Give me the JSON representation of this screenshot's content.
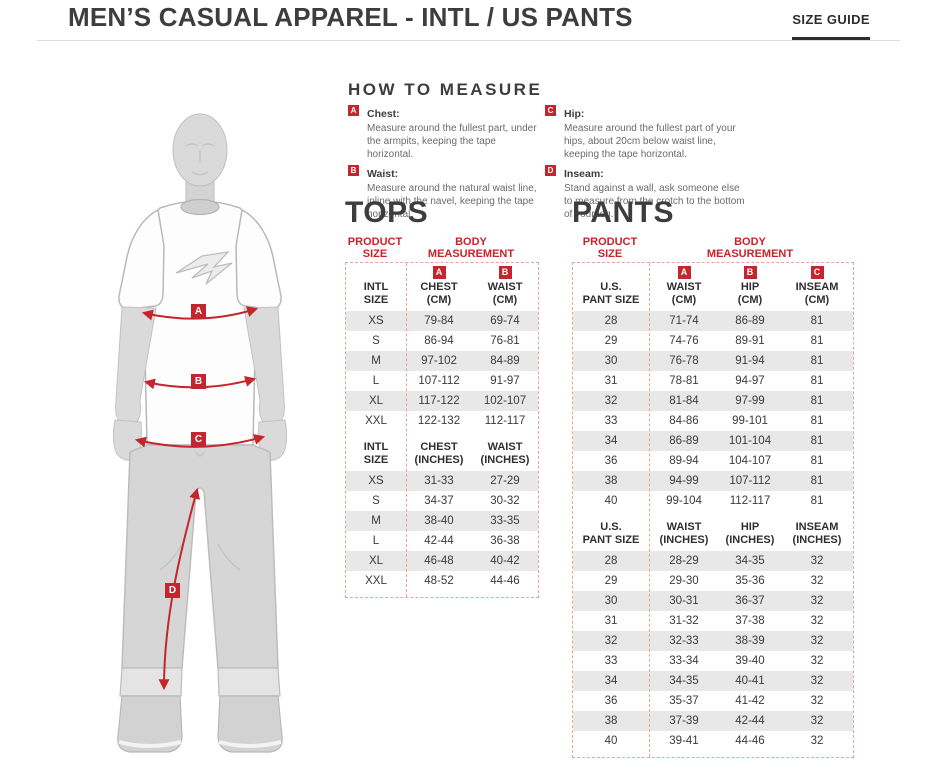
{
  "page": {
    "title": "MEN’S CASUAL APPAREL - INTL / US PANTS",
    "size_guide_label": "SIZE GUIDE"
  },
  "colors": {
    "accent_red": "#c4262e",
    "heading_dark": "#3d3d3d",
    "row_shade": "#e8e8e8",
    "dashed_border": "#e2a59f"
  },
  "figure": {
    "labels": [
      "A",
      "B",
      "C",
      "D"
    ]
  },
  "how_to_measure": {
    "title": "HOW TO MEASURE",
    "items": [
      {
        "letter": "A",
        "name": "Chest:",
        "text": "Measure around the fullest part, under the armpits, keeping the tape horizontal."
      },
      {
        "letter": "B",
        "name": "Waist:",
        "text": "Measure around the natural waist line, inline with the navel, keeping the tape horizontal."
      },
      {
        "letter": "C",
        "name": "Hip:",
        "text": "Measure around the fullest part of your hips, about 20cm below waist line, keeping the tape horizontal."
      },
      {
        "letter": "D",
        "name": "Inseam:",
        "text": "Stand against a wall, ask someone else to measure from the crotch to the bottom of your leg."
      }
    ]
  },
  "tops": {
    "title": "TOPS",
    "product_size_label": "PRODUCT\nSIZE",
    "body_measurement_label": "BODY\nMEASUREMENT",
    "cm": {
      "badges": [
        "A",
        "B"
      ],
      "columns": [
        "INTL\nSIZE",
        "CHEST\n(CM)",
        "WAIST\n(CM)"
      ],
      "rows": [
        [
          "XS",
          "79-84",
          "69-74"
        ],
        [
          "S",
          "86-94",
          "76-81"
        ],
        [
          "M",
          "97-102",
          "84-89"
        ],
        [
          "L",
          "107-112",
          "91-97"
        ],
        [
          "XL",
          "117-122",
          "102-107"
        ],
        [
          "XXL",
          "122-132",
          "112-117"
        ]
      ]
    },
    "inches": {
      "columns": [
        "INTL\nSIZE",
        "CHEST\n(INCHES)",
        "WAIST\n(INCHES)"
      ],
      "rows": [
        [
          "XS",
          "31-33",
          "27-29"
        ],
        [
          "S",
          "34-37",
          "30-32"
        ],
        [
          "M",
          "38-40",
          "33-35"
        ],
        [
          "L",
          "42-44",
          "36-38"
        ],
        [
          "XL",
          "46-48",
          "40-42"
        ],
        [
          "XXL",
          "48-52",
          "44-46"
        ]
      ]
    }
  },
  "pants": {
    "title": "PANTS",
    "product_size_label": "PRODUCT\nSIZE",
    "body_measurement_label": "BODY\nMEASUREMENT",
    "cm": {
      "badges": [
        "A",
        "B",
        "C"
      ],
      "columns": [
        "U.S.\nPANT SIZE",
        "WAIST\n(CM)",
        "HIP\n(CM)",
        "INSEAM\n(CM)"
      ],
      "rows": [
        [
          "28",
          "71-74",
          "86-89",
          "81"
        ],
        [
          "29",
          "74-76",
          "89-91",
          "81"
        ],
        [
          "30",
          "76-78",
          "91-94",
          "81"
        ],
        [
          "31",
          "78-81",
          "94-97",
          "81"
        ],
        [
          "32",
          "81-84",
          "97-99",
          "81"
        ],
        [
          "33",
          "84-86",
          "99-101",
          "81"
        ],
        [
          "34",
          "86-89",
          "101-104",
          "81"
        ],
        [
          "36",
          "89-94",
          "104-107",
          "81"
        ],
        [
          "38",
          "94-99",
          "107-112",
          "81"
        ],
        [
          "40",
          "99-104",
          "112-117",
          "81"
        ]
      ]
    },
    "inches": {
      "columns": [
        "U.S.\nPANT SIZE",
        "WAIST\n(INCHES)",
        "HIP\n(INCHES)",
        "INSEAM\n(INCHES)"
      ],
      "rows": [
        [
          "28",
          "28-29",
          "34-35",
          "32"
        ],
        [
          "29",
          "29-30",
          "35-36",
          "32"
        ],
        [
          "30",
          "30-31",
          "36-37",
          "32"
        ],
        [
          "31",
          "31-32",
          "37-38",
          "32"
        ],
        [
          "32",
          "32-33",
          "38-39",
          "32"
        ],
        [
          "33",
          "33-34",
          "39-40",
          "32"
        ],
        [
          "34",
          "34-35",
          "40-41",
          "32"
        ],
        [
          "36",
          "35-37",
          "41-42",
          "32"
        ],
        [
          "38",
          "37-39",
          "42-44",
          "32"
        ],
        [
          "40",
          "39-41",
          "44-46",
          "32"
        ]
      ]
    }
  }
}
